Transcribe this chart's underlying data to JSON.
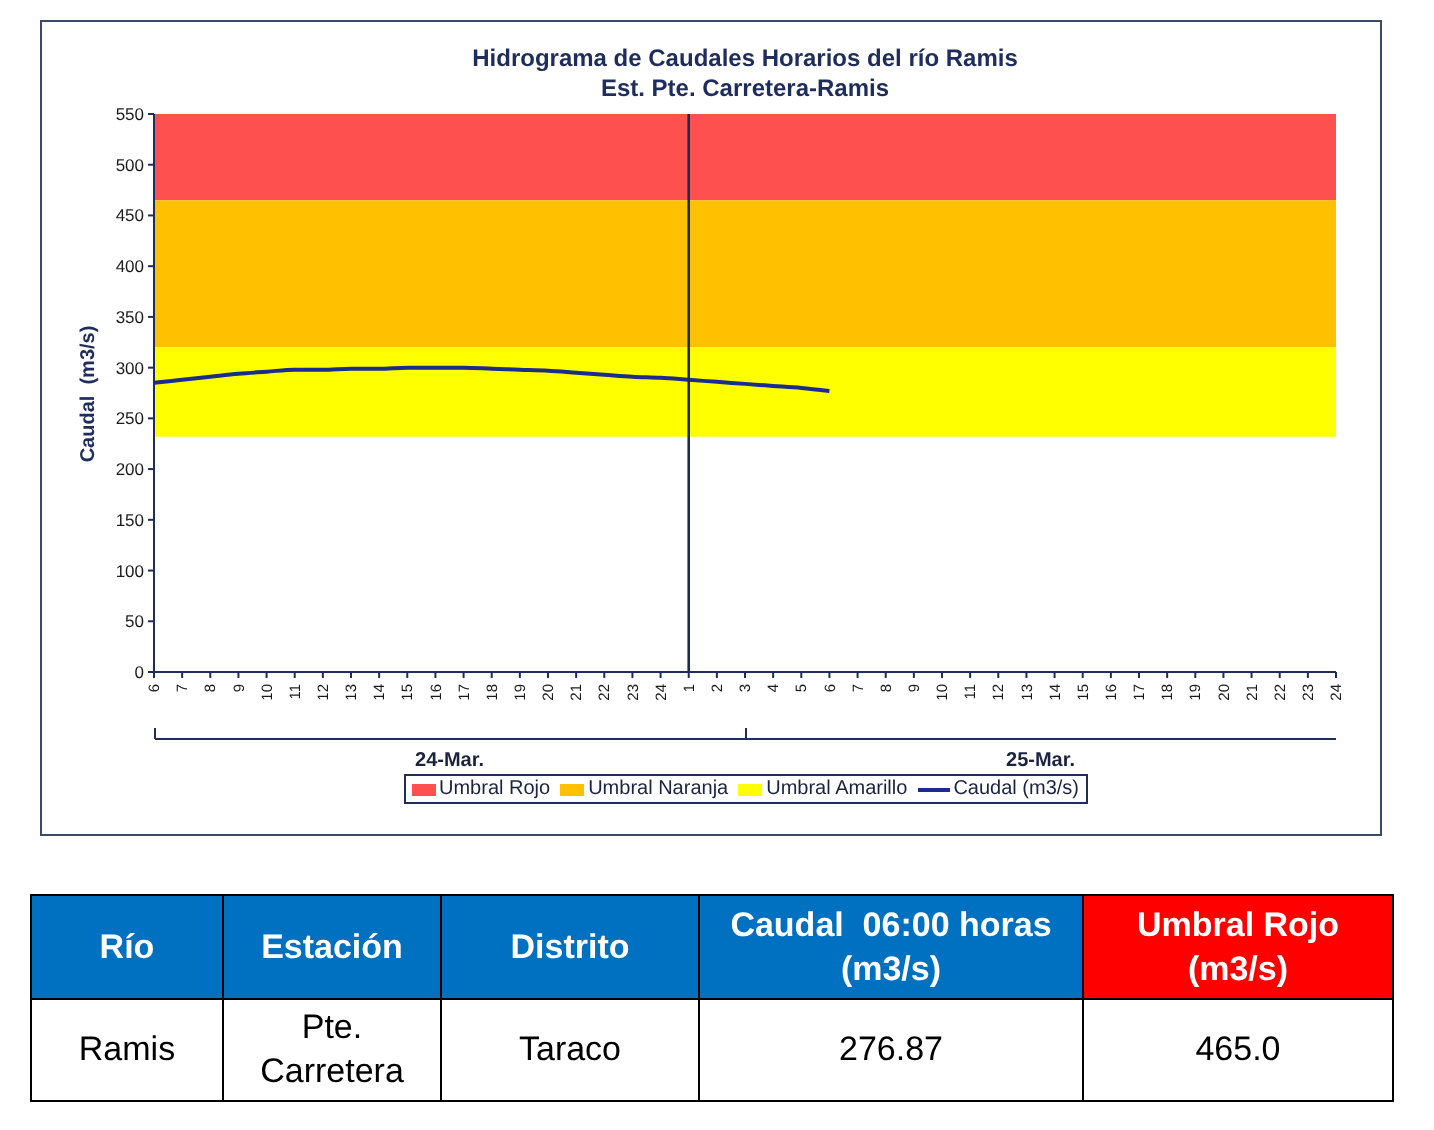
{
  "chart_data": [
    {
      "type": "line",
      "title": "Hidrograma de Caudales Horarios del río Ramis",
      "subtitle": "Est. Pte. Carretera-Ramis",
      "ylabel": "Caudal  (m3/s)",
      "categories": [
        "6",
        "7",
        "8",
        "9",
        "10",
        "11",
        "12",
        "13",
        "14",
        "15",
        "16",
        "17",
        "18",
        "19",
        "20",
        "21",
        "22",
        "23",
        "24",
        "1",
        "2",
        "3",
        "4",
        "5",
        "6",
        "7",
        "8",
        "9",
        "10",
        "11",
        "12",
        "13",
        "14",
        "15",
        "16",
        "17",
        "18",
        "19",
        "20",
        "21",
        "22",
        "23",
        "24"
      ],
      "series": [
        {
          "name": "Caudal (m3/s)",
          "color": "#1c2c8c",
          "values": [
            285,
            288,
            291,
            294,
            296,
            298,
            298,
            299,
            299,
            300,
            300,
            300,
            299,
            298,
            297,
            295,
            293,
            291,
            290,
            288,
            286,
            284,
            282,
            280,
            277,
            null,
            null,
            null,
            null,
            null,
            null,
            null,
            null,
            null,
            null,
            null,
            null,
            null,
            null,
            null,
            null,
            null,
            null
          ]
        }
      ],
      "ylim": [
        0,
        550
      ],
      "yticks": [
        0,
        50,
        100,
        150,
        200,
        250,
        300,
        350,
        400,
        450,
        500,
        550
      ],
      "bands": [
        {
          "axis": "y",
          "from": 465,
          "to": 550,
          "label": "Umbral Rojo",
          "color": "#ff5050"
        },
        {
          "axis": "y",
          "from": 320,
          "to": 465,
          "label": "Umbral Naranja",
          "color": "#ffc000"
        },
        {
          "axis": "y",
          "from": 232,
          "to": 320,
          "label": "Umbral Amarillo",
          "color": "#ffff00"
        }
      ],
      "ref_lines": [
        {
          "axis": "x",
          "value": "1",
          "color": "#1f2a44"
        }
      ],
      "annotations": [
        "24-Mar.",
        "25-Mar."
      ],
      "legend": "bottom",
      "marker": "none"
    },
    {
      "type": "other",
      "categories": [
        "Río",
        "Estación",
        "Distrito",
        "Caudal  06:00 horas (m3/s)",
        "Umbral Rojo (m3/s)"
      ],
      "annotations": [
        "Ramis",
        "Pte. Carretera",
        "Taraco",
        "276.87",
        "465.0"
      ],
      "colors": [
        "#0070c0",
        "#0070c0",
        "#0070c0",
        "#0070c0",
        "#ff0000"
      ]
    }
  ]
}
